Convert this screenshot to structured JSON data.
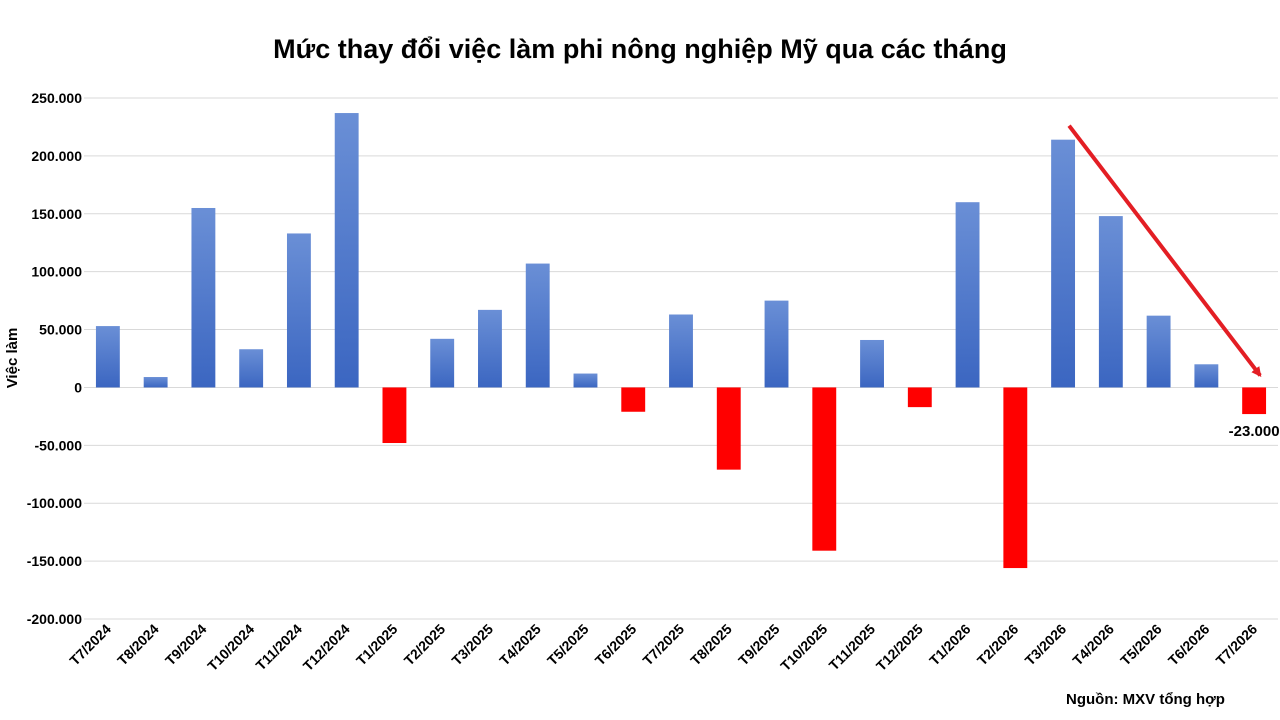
{
  "chart_data": {
    "type": "bar",
    "title": "Mức thay đổi việc làm phi nông nghiệp Mỹ qua các tháng",
    "ylabel": "Việc làm",
    "xlabel": "",
    "ylim": [
      -200000,
      250000
    ],
    "yticks": [
      250000,
      200000,
      150000,
      100000,
      50000,
      0,
      -50000,
      -100000,
      -150000,
      -200000
    ],
    "ytick_labels": [
      "250.000",
      "200.000",
      "150.000",
      "100.000",
      "50.000",
      "0",
      "-50.000",
      "-100.000",
      "-150.000",
      "-200.000"
    ],
    "categories": [
      "T7/2024",
      "T8/2024",
      "T9/2024",
      "T10/2024",
      "T11/2024",
      "T12/2024",
      "T1/2025",
      "T2/2025",
      "T3/2025",
      "T4/2025",
      "T5/2025",
      "T6/2025",
      "T7/2025",
      "T8/2025",
      "T9/2025",
      "T10/2025",
      "T11/2025",
      "T12/2025",
      "T1/2026",
      "T2/2026",
      "T3/2026",
      "T4/2026",
      "T5/2026",
      "T6/2026",
      "T7/2026"
    ],
    "values": [
      53000,
      9000,
      155000,
      33000,
      133000,
      237000,
      -48000,
      42000,
      67000,
      107000,
      12000,
      -21000,
      63000,
      -71000,
      75000,
      -141000,
      41000,
      -17000,
      160000,
      -156000,
      214000,
      148000,
      62000,
      20000,
      -23000
    ],
    "data_labels": [
      {
        "category": "T7/2026",
        "text": "-23.000"
      }
    ],
    "colors": {
      "positive": "#4472C4",
      "negative": "#FF0000",
      "arrow": "#E31E24",
      "grid": "#D9D9D9"
    },
    "grid": true,
    "legend": "none",
    "annotation": {
      "type": "arrow",
      "from": "T3/2026",
      "to": "T7/2026",
      "direction": "down"
    }
  },
  "source_note": "Nguồn: MXV tổng hợp"
}
